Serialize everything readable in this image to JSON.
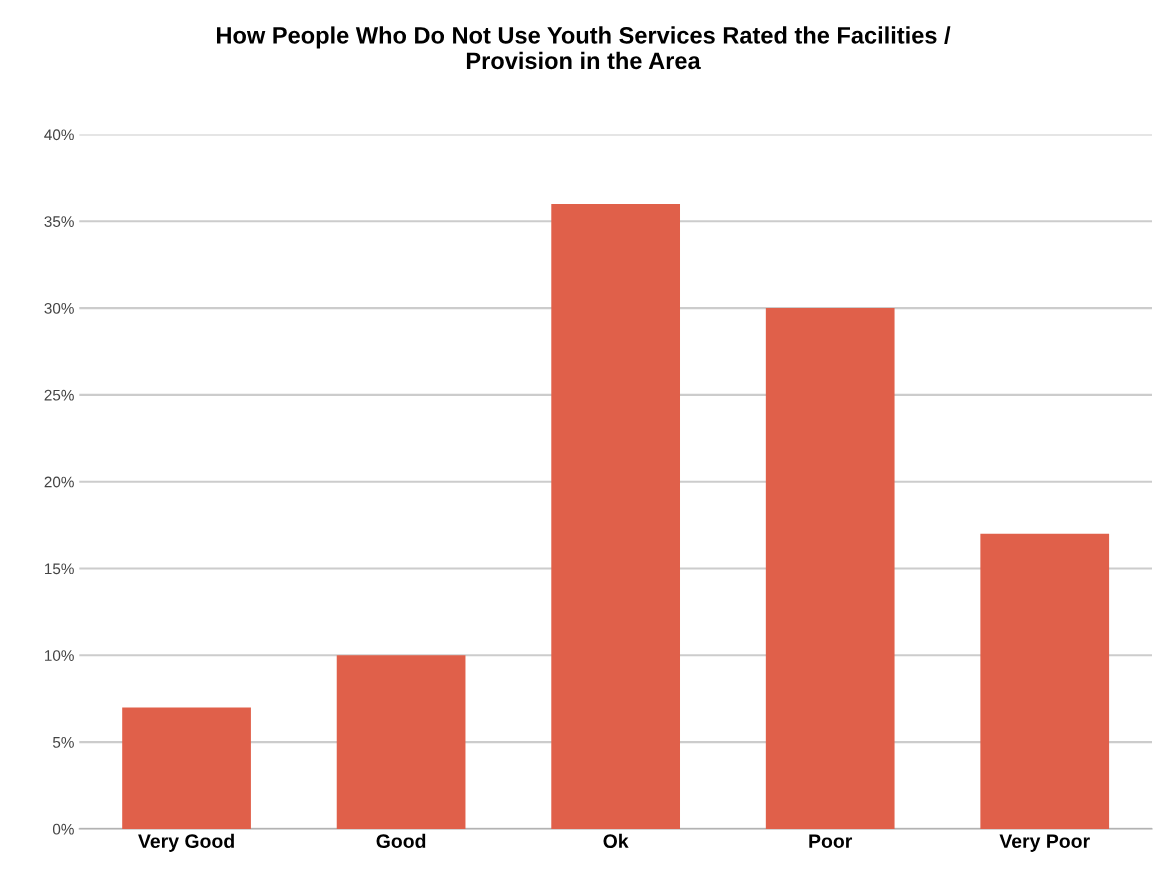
{
  "chart_data": {
    "type": "bar",
    "title": "How People Who Do Not Use Youth Services Rated the Facilities /\nProvision in the Area",
    "categories": [
      "Very Good",
      "Good",
      "Ok",
      "Poor",
      "Very Poor"
    ],
    "values": [
      7,
      10,
      36,
      30,
      17
    ],
    "color": "#e0604a",
    "ylim": [
      0,
      40
    ],
    "yticks": [
      {
        "value": 0,
        "label": "0%"
      },
      {
        "value": 5,
        "label": "5%"
      },
      {
        "value": 10,
        "label": "10%"
      },
      {
        "value": 15,
        "label": "15%"
      },
      {
        "value": 20,
        "label": "20%"
      },
      {
        "value": 25,
        "label": "25%"
      },
      {
        "value": 30,
        "label": "30%"
      },
      {
        "value": 35,
        "label": "35%"
      },
      {
        "value": 40,
        "label": "40%"
      }
    ],
    "grid": "y",
    "legend": false
  }
}
